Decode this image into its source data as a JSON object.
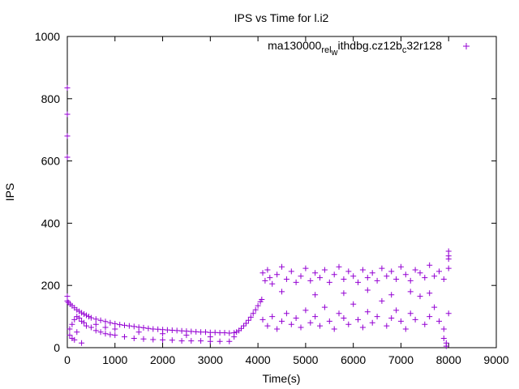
{
  "chart_data": {
    "type": "scatter",
    "title": "IPS vs Time for l.i2",
    "xlabel": "Time(s)",
    "ylabel": "IPS",
    "xlim": [
      0,
      9000
    ],
    "ylim": [
      0,
      1000
    ],
    "xticks": [
      0,
      1000,
      2000,
      3000,
      4000,
      5000,
      6000,
      7000,
      8000,
      9000
    ],
    "yticks": [
      0,
      200,
      400,
      600,
      800,
      1000
    ],
    "grid": false,
    "legend_position": "top-right",
    "series": [
      {
        "name": "ma130000_rel_withdbg.cz12b_c32r128",
        "legend": {
          "parts": [
            {
              "text": "ma130000",
              "shift": "base"
            },
            {
              "text": "rel",
              "shift": "sub"
            },
            {
              "text": "w",
              "shift": "sub2"
            },
            {
              "text": "ithdbg.cz12b",
              "shift": "base"
            },
            {
              "text": "c",
              "shift": "sub"
            },
            {
              "text": "32r128",
              "shift": "base"
            }
          ]
        },
        "color": "#9400d3",
        "marker": "plus",
        "points": [
          [
            0,
            835
          ],
          [
            0,
            750
          ],
          [
            0,
            680
          ],
          [
            0,
            612
          ],
          [
            0,
            165
          ],
          [
            0,
            150
          ],
          [
            20,
            145
          ],
          [
            60,
            140
          ],
          [
            100,
            135
          ],
          [
            150,
            128
          ],
          [
            200,
            122
          ],
          [
            250,
            117
          ],
          [
            300,
            112
          ],
          [
            350,
            108
          ],
          [
            400,
            104
          ],
          [
            450,
            100
          ],
          [
            500,
            96
          ],
          [
            600,
            92
          ],
          [
            700,
            88
          ],
          [
            800,
            84
          ],
          [
            900,
            80
          ],
          [
            1000,
            77
          ],
          [
            1100,
            74
          ],
          [
            1200,
            72
          ],
          [
            1300,
            70
          ],
          [
            1400,
            68
          ],
          [
            1500,
            66
          ],
          [
            1600,
            64
          ],
          [
            1700,
            62
          ],
          [
            1800,
            60
          ],
          [
            1900,
            59
          ],
          [
            2000,
            58
          ],
          [
            2100,
            57
          ],
          [
            2200,
            56
          ],
          [
            2300,
            55
          ],
          [
            2400,
            54
          ],
          [
            2500,
            53
          ],
          [
            2600,
            52
          ],
          [
            2700,
            51
          ],
          [
            2800,
            50
          ],
          [
            2900,
            50
          ],
          [
            3000,
            49
          ],
          [
            3100,
            49
          ],
          [
            3200,
            48
          ],
          [
            3300,
            48
          ],
          [
            3400,
            47
          ],
          [
            3500,
            48
          ],
          [
            3550,
            50
          ],
          [
            3600,
            55
          ],
          [
            3650,
            62
          ],
          [
            3700,
            70
          ],
          [
            3750,
            78
          ],
          [
            3800,
            88
          ],
          [
            3850,
            98
          ],
          [
            3900,
            110
          ],
          [
            3950,
            122
          ],
          [
            4000,
            135
          ],
          [
            4050,
            148
          ],
          [
            4080,
            155
          ],
          [
            50,
            60
          ],
          [
            100,
            75
          ],
          [
            150,
            90
          ],
          [
            200,
            100
          ],
          [
            250,
            95
          ],
          [
            300,
            85
          ],
          [
            350,
            80
          ],
          [
            400,
            70
          ],
          [
            500,
            65
          ],
          [
            600,
            55
          ],
          [
            700,
            50
          ],
          [
            800,
            45
          ],
          [
            900,
            42
          ],
          [
            1000,
            40
          ],
          [
            1200,
            35
          ],
          [
            1400,
            30
          ],
          [
            1600,
            28
          ],
          [
            1800,
            26
          ],
          [
            2000,
            25
          ],
          [
            2200,
            24
          ],
          [
            2400,
            22
          ],
          [
            2600,
            22
          ],
          [
            2800,
            22
          ],
          [
            3000,
            20
          ],
          [
            3200,
            20
          ],
          [
            3400,
            20
          ],
          [
            50,
            40
          ],
          [
            100,
            30
          ],
          [
            150,
            25
          ],
          [
            300,
            15
          ],
          [
            200,
            50
          ],
          [
            600,
            75
          ],
          [
            800,
            65
          ],
          [
            1000,
            60
          ],
          [
            1500,
            50
          ],
          [
            2000,
            45
          ],
          [
            2500,
            40
          ],
          [
            3000,
            35
          ],
          [
            3500,
            35
          ],
          [
            4100,
            240
          ],
          [
            4150,
            215
          ],
          [
            4200,
            250
          ],
          [
            4250,
            225
          ],
          [
            4300,
            205
          ],
          [
            4400,
            235
          ],
          [
            4500,
            260
          ],
          [
            4600,
            220
          ],
          [
            4700,
            245
          ],
          [
            4800,
            210
          ],
          [
            4900,
            230
          ],
          [
            5000,
            255
          ],
          [
            5100,
            215
          ],
          [
            5200,
            240
          ],
          [
            5300,
            225
          ],
          [
            5400,
            250
          ],
          [
            5500,
            210
          ],
          [
            5600,
            235
          ],
          [
            5700,
            260
          ],
          [
            5800,
            220
          ],
          [
            5900,
            245
          ],
          [
            6000,
            230
          ],
          [
            6100,
            210
          ],
          [
            6200,
            250
          ],
          [
            6300,
            225
          ],
          [
            6400,
            240
          ],
          [
            6500,
            215
          ],
          [
            6600,
            255
          ],
          [
            6700,
            230
          ],
          [
            6800,
            245
          ],
          [
            6900,
            220
          ],
          [
            7000,
            260
          ],
          [
            7100,
            235
          ],
          [
            7200,
            215
          ],
          [
            7300,
            250
          ],
          [
            7400,
            240
          ],
          [
            7500,
            225
          ],
          [
            7600,
            265
          ],
          [
            7700,
            230
          ],
          [
            7800,
            245
          ],
          [
            7900,
            220
          ],
          [
            8000,
            255
          ],
          [
            4100,
            90
          ],
          [
            4200,
            70
          ],
          [
            4300,
            100
          ],
          [
            4400,
            60
          ],
          [
            4500,
            85
          ],
          [
            4600,
            110
          ],
          [
            4700,
            75
          ],
          [
            4800,
            95
          ],
          [
            4900,
            65
          ],
          [
            5000,
            120
          ],
          [
            5100,
            80
          ],
          [
            5200,
            100
          ],
          [
            5300,
            70
          ],
          [
            5400,
            130
          ],
          [
            5500,
            85
          ],
          [
            5600,
            60
          ],
          [
            5700,
            110
          ],
          [
            5800,
            95
          ],
          [
            5900,
            75
          ],
          [
            6000,
            140
          ],
          [
            6100,
            90
          ],
          [
            6200,
            65
          ],
          [
            6300,
            115
          ],
          [
            6400,
            80
          ],
          [
            6500,
            100
          ],
          [
            6600,
            150
          ],
          [
            6700,
            70
          ],
          [
            6800,
            95
          ],
          [
            6900,
            120
          ],
          [
            7000,
            85
          ],
          [
            7100,
            60
          ],
          [
            7200,
            110
          ],
          [
            7300,
            90
          ],
          [
            7400,
            165
          ],
          [
            7500,
            75
          ],
          [
            7600,
            100
          ],
          [
            7700,
            130
          ],
          [
            7800,
            85
          ],
          [
            7900,
            60
          ],
          [
            8000,
            110
          ],
          [
            4500,
            180
          ],
          [
            5200,
            170
          ],
          [
            5800,
            175
          ],
          [
            6300,
            185
          ],
          [
            6800,
            170
          ],
          [
            7200,
            180
          ],
          [
            7600,
            175
          ],
          [
            7950,
            5
          ],
          [
            7950,
            15
          ],
          [
            7900,
            30
          ],
          [
            8000,
            310
          ],
          [
            8000,
            295
          ],
          [
            8000,
            285
          ]
        ]
      }
    ]
  }
}
